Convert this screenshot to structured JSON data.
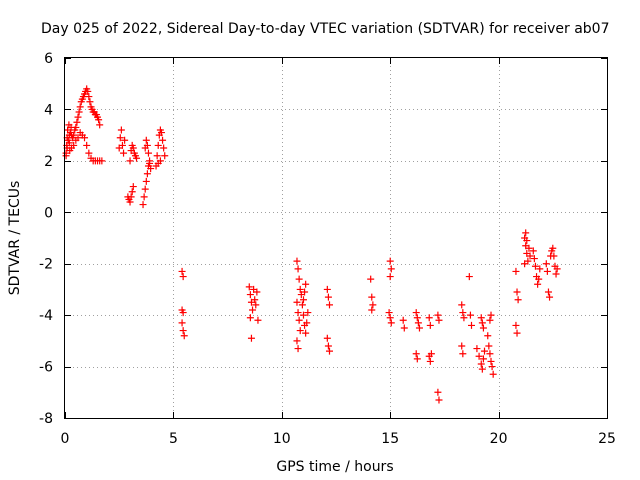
{
  "chart_data": {
    "type": "scatter",
    "title": "Day 025 of 2022, Sidereal Day-to-day VTEC variation (SDTVAR) for receiver ab07",
    "xlabel": "GPS time / hours",
    "ylabel": "SDTVAR / TECUs",
    "xlim": [
      0,
      25
    ],
    "ylim": [
      -8,
      6
    ],
    "xticks": [
      0,
      5,
      10,
      15,
      20,
      25
    ],
    "yticks": [
      -8,
      -6,
      -4,
      -2,
      0,
      2,
      4,
      6
    ],
    "grid": true,
    "marker": "+",
    "color": "#ff0000",
    "series": [
      {
        "name": "SDTVAR",
        "points": [
          [
            0.05,
            2.3
          ],
          [
            0.1,
            2.5
          ],
          [
            0.15,
            2.8
          ],
          [
            0.2,
            3.0
          ],
          [
            0.25,
            3.1
          ],
          [
            0.3,
            3.0
          ],
          [
            0.35,
            2.9
          ],
          [
            0.4,
            3.0
          ],
          [
            0.45,
            3.2
          ],
          [
            0.5,
            3.3
          ],
          [
            0.55,
            3.5
          ],
          [
            0.6,
            3.7
          ],
          [
            0.65,
            3.9
          ],
          [
            0.7,
            4.1
          ],
          [
            0.75,
            4.3
          ],
          [
            0.8,
            4.4
          ],
          [
            0.85,
            4.5
          ],
          [
            0.9,
            4.6
          ],
          [
            0.95,
            4.7
          ],
          [
            1.0,
            4.8
          ],
          [
            1.05,
            4.7
          ],
          [
            1.1,
            4.5
          ],
          [
            1.15,
            4.3
          ],
          [
            1.2,
            4.1
          ],
          [
            1.25,
            4.0
          ],
          [
            1.3,
            3.9
          ],
          [
            1.35,
            3.9
          ],
          [
            1.4,
            3.8
          ],
          [
            1.45,
            3.8
          ],
          [
            1.5,
            3.7
          ],
          [
            1.55,
            3.6
          ],
          [
            1.6,
            3.4
          ],
          [
            0.1,
            2.9
          ],
          [
            0.2,
            2.7
          ],
          [
            0.3,
            2.5
          ],
          [
            0.4,
            2.6
          ],
          [
            0.5,
            2.8
          ],
          [
            0.6,
            2.9
          ],
          [
            0.7,
            3.1
          ],
          [
            0.8,
            3.0
          ],
          [
            0.9,
            2.9
          ],
          [
            1.0,
            2.6
          ],
          [
            1.1,
            2.3
          ],
          [
            1.2,
            2.1
          ],
          [
            1.3,
            2.0
          ],
          [
            1.4,
            2.0
          ],
          [
            1.5,
            2.0
          ],
          [
            1.6,
            2.0
          ],
          [
            1.7,
            2.0
          ],
          [
            0.05,
            2.2
          ],
          [
            0.08,
            2.6
          ],
          [
            0.12,
            3.2
          ],
          [
            0.18,
            3.4
          ],
          [
            0.22,
            2.4
          ],
          [
            0.28,
            3.3
          ],
          [
            2.5,
            2.5
          ],
          [
            2.55,
            2.9
          ],
          [
            2.6,
            3.2
          ],
          [
            2.65,
            2.6
          ],
          [
            2.7,
            2.3
          ],
          [
            2.75,
            2.8
          ],
          [
            2.9,
            0.6
          ],
          [
            2.95,
            0.5
          ],
          [
            3.0,
            0.4
          ],
          [
            3.05,
            0.6
          ],
          [
            3.1,
            0.8
          ],
          [
            3.15,
            1.0
          ],
          [
            3.0,
            2.0
          ],
          [
            3.05,
            2.4
          ],
          [
            3.1,
            2.6
          ],
          [
            3.15,
            2.5
          ],
          [
            3.2,
            2.3
          ],
          [
            3.25,
            2.2
          ],
          [
            3.3,
            2.1
          ],
          [
            3.6,
            0.3
          ],
          [
            3.65,
            0.6
          ],
          [
            3.7,
            0.9
          ],
          [
            3.75,
            1.2
          ],
          [
            3.8,
            1.5
          ],
          [
            3.85,
            1.8
          ],
          [
            3.9,
            2.0
          ],
          [
            3.7,
            2.5
          ],
          [
            3.75,
            2.8
          ],
          [
            3.8,
            2.6
          ],
          [
            3.85,
            2.3
          ],
          [
            3.9,
            1.9
          ],
          [
            3.95,
            1.7
          ],
          [
            4.2,
            1.8
          ],
          [
            4.25,
            2.2
          ],
          [
            4.3,
            2.6
          ],
          [
            4.35,
            3.0
          ],
          [
            4.4,
            3.2
          ],
          [
            4.45,
            3.1
          ],
          [
            4.5,
            2.8
          ],
          [
            4.55,
            2.5
          ],
          [
            4.6,
            2.2
          ],
          [
            4.3,
            1.9
          ],
          [
            4.4,
            2.0
          ],
          [
            5.4,
            -2.3
          ],
          [
            5.45,
            -2.5
          ],
          [
            5.4,
            -3.8
          ],
          [
            5.45,
            -3.9
          ],
          [
            5.4,
            -4.3
          ],
          [
            5.45,
            -4.6
          ],
          [
            5.5,
            -4.8
          ],
          [
            8.5,
            -2.9
          ],
          [
            8.55,
            -3.2
          ],
          [
            8.6,
            -3.5
          ],
          [
            8.65,
            -3.8
          ],
          [
            8.55,
            -4.1
          ],
          [
            8.6,
            -4.9
          ],
          [
            8.7,
            -3.0
          ],
          [
            8.75,
            -3.4
          ],
          [
            8.8,
            -3.6
          ],
          [
            8.85,
            -3.1
          ],
          [
            8.9,
            -4.2
          ],
          [
            10.7,
            -1.9
          ],
          [
            10.75,
            -2.2
          ],
          [
            10.8,
            -2.6
          ],
          [
            10.85,
            -3.0
          ],
          [
            10.7,
            -3.5
          ],
          [
            10.75,
            -3.9
          ],
          [
            10.8,
            -4.2
          ],
          [
            10.85,
            -4.6
          ],
          [
            10.7,
            -5.0
          ],
          [
            10.75,
            -5.3
          ],
          [
            10.9,
            -3.2
          ],
          [
            10.95,
            -3.6
          ],
          [
            11.0,
            -4.0
          ],
          [
            11.05,
            -4.4
          ],
          [
            11.1,
            -4.7
          ],
          [
            11.15,
            -4.3
          ],
          [
            11.2,
            -3.9
          ],
          [
            11.0,
            -3.4
          ],
          [
            11.05,
            -3.1
          ],
          [
            11.1,
            -2.8
          ],
          [
            12.1,
            -3.0
          ],
          [
            12.15,
            -3.3
          ],
          [
            12.2,
            -3.6
          ],
          [
            12.1,
            -4.9
          ],
          [
            12.15,
            -5.2
          ],
          [
            12.2,
            -5.4
          ],
          [
            14.1,
            -2.6
          ],
          [
            14.15,
            -3.3
          ],
          [
            14.2,
            -3.6
          ],
          [
            14.15,
            -3.8
          ],
          [
            15.0,
            -1.9
          ],
          [
            15.05,
            -2.2
          ],
          [
            15.0,
            -2.5
          ],
          [
            14.95,
            -3.9
          ],
          [
            15.0,
            -4.1
          ],
          [
            15.05,
            -4.3
          ],
          [
            15.6,
            -4.2
          ],
          [
            15.65,
            -4.5
          ],
          [
            16.2,
            -3.9
          ],
          [
            16.25,
            -4.1
          ],
          [
            16.3,
            -4.3
          ],
          [
            16.35,
            -4.5
          ],
          [
            16.2,
            -5.5
          ],
          [
            16.25,
            -5.7
          ],
          [
            16.8,
            -4.1
          ],
          [
            16.85,
            -4.4
          ],
          [
            16.8,
            -5.6
          ],
          [
            16.85,
            -5.8
          ],
          [
            16.9,
            -5.5
          ],
          [
            17.2,
            -4.0
          ],
          [
            17.25,
            -4.2
          ],
          [
            17.2,
            -7.0
          ],
          [
            17.25,
            -7.3
          ],
          [
            18.3,
            -3.6
          ],
          [
            18.35,
            -3.9
          ],
          [
            18.4,
            -4.1
          ],
          [
            18.3,
            -5.2
          ],
          [
            18.35,
            -5.5
          ],
          [
            18.65,
            -2.5
          ],
          [
            18.7,
            -4.0
          ],
          [
            18.75,
            -4.4
          ],
          [
            19.0,
            -5.3
          ],
          [
            19.1,
            -5.6
          ],
          [
            19.2,
            -5.9
          ],
          [
            19.25,
            -6.1
          ],
          [
            19.3,
            -5.7
          ],
          [
            19.35,
            -5.4
          ],
          [
            19.2,
            -4.1
          ],
          [
            19.25,
            -4.3
          ],
          [
            19.3,
            -4.5
          ],
          [
            19.5,
            -4.8
          ],
          [
            19.55,
            -5.2
          ],
          [
            19.6,
            -5.5
          ],
          [
            19.65,
            -5.8
          ],
          [
            19.7,
            -6.0
          ],
          [
            19.75,
            -6.3
          ],
          [
            19.6,
            -4.2
          ],
          [
            19.65,
            -4.0
          ],
          [
            20.8,
            -2.3
          ],
          [
            20.85,
            -3.1
          ],
          [
            20.9,
            -3.4
          ],
          [
            20.8,
            -4.4
          ],
          [
            20.85,
            -4.7
          ],
          [
            21.2,
            -1.0
          ],
          [
            21.25,
            -1.3
          ],
          [
            21.3,
            -1.6
          ],
          [
            21.35,
            -1.9
          ],
          [
            21.2,
            -2.0
          ],
          [
            21.25,
            -0.8
          ],
          [
            21.3,
            -1.1
          ],
          [
            21.4,
            -1.4
          ],
          [
            21.45,
            -1.7
          ],
          [
            21.6,
            -1.5
          ],
          [
            21.65,
            -1.8
          ],
          [
            21.7,
            -2.1
          ],
          [
            21.75,
            -2.5
          ],
          [
            21.8,
            -2.8
          ],
          [
            21.85,
            -2.6
          ],
          [
            21.9,
            -2.2
          ],
          [
            22.2,
            -2.0
          ],
          [
            22.25,
            -2.3
          ],
          [
            22.3,
            -3.1
          ],
          [
            22.35,
            -3.3
          ],
          [
            22.4,
            -1.7
          ],
          [
            22.45,
            -1.5
          ],
          [
            22.5,
            -1.4
          ],
          [
            22.55,
            -1.7
          ],
          [
            22.6,
            -2.1
          ],
          [
            22.65,
            -2.4
          ],
          [
            22.7,
            -2.2
          ]
        ]
      }
    ]
  }
}
